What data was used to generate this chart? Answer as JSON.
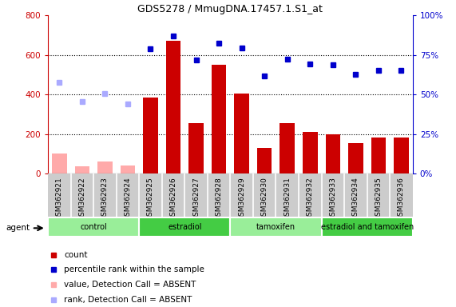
{
  "title": "GDS5278 / MmugDNA.17457.1.S1_at",
  "samples": [
    "GSM362921",
    "GSM362922",
    "GSM362923",
    "GSM362924",
    "GSM362925",
    "GSM362926",
    "GSM362927",
    "GSM362928",
    "GSM362929",
    "GSM362930",
    "GSM362931",
    "GSM362932",
    "GSM362933",
    "GSM362934",
    "GSM362935",
    "GSM362936"
  ],
  "bar_values": [
    null,
    null,
    null,
    null,
    385,
    670,
    255,
    550,
    405,
    130,
    255,
    210,
    200,
    155,
    180,
    180
  ],
  "bar_absent_values": [
    100,
    35,
    60,
    40,
    null,
    null,
    null,
    null,
    null,
    null,
    null,
    null,
    null,
    null,
    null,
    null
  ],
  "rank_values": [
    null,
    null,
    null,
    null,
    630,
    695,
    575,
    660,
    635,
    495,
    580,
    555,
    550,
    500,
    520,
    520
  ],
  "rank_absent_values": [
    460,
    365,
    405,
    350,
    null,
    null,
    null,
    null,
    null,
    null,
    null,
    null,
    null,
    null,
    null,
    null
  ],
  "groups": [
    {
      "label": "control",
      "start": 0,
      "end": 3,
      "color": "#99ee99"
    },
    {
      "label": "estradiol",
      "start": 4,
      "end": 7,
      "color": "#44cc44"
    },
    {
      "label": "tamoxifen",
      "start": 8,
      "end": 11,
      "color": "#99ee99"
    },
    {
      "label": "estradiol and tamoxifen",
      "start": 12,
      "end": 15,
      "color": "#44cc44"
    }
  ],
  "ylim_left": [
    0,
    800
  ],
  "ylim_right": [
    0,
    100
  ],
  "yticks_left": [
    0,
    200,
    400,
    600,
    800
  ],
  "yticks_right": [
    0,
    25,
    50,
    75,
    100
  ],
  "bar_color": "#cc0000",
  "bar_absent_color": "#ffaaaa",
  "rank_color": "#0000cc",
  "rank_absent_color": "#aaaaff",
  "background_color": "#ffffff",
  "grid_color": "#000000",
  "tick_color_left": "#cc0000",
  "tick_color_right": "#0000cc",
  "xtick_bg_color": "#cccccc",
  "legend_items": [
    {
      "label": "count",
      "color": "#cc0000"
    },
    {
      "label": "percentile rank within the sample",
      "color": "#0000cc"
    },
    {
      "label": "value, Detection Call = ABSENT",
      "color": "#ffaaaa"
    },
    {
      "label": "rank, Detection Call = ABSENT",
      "color": "#aaaaff"
    }
  ]
}
